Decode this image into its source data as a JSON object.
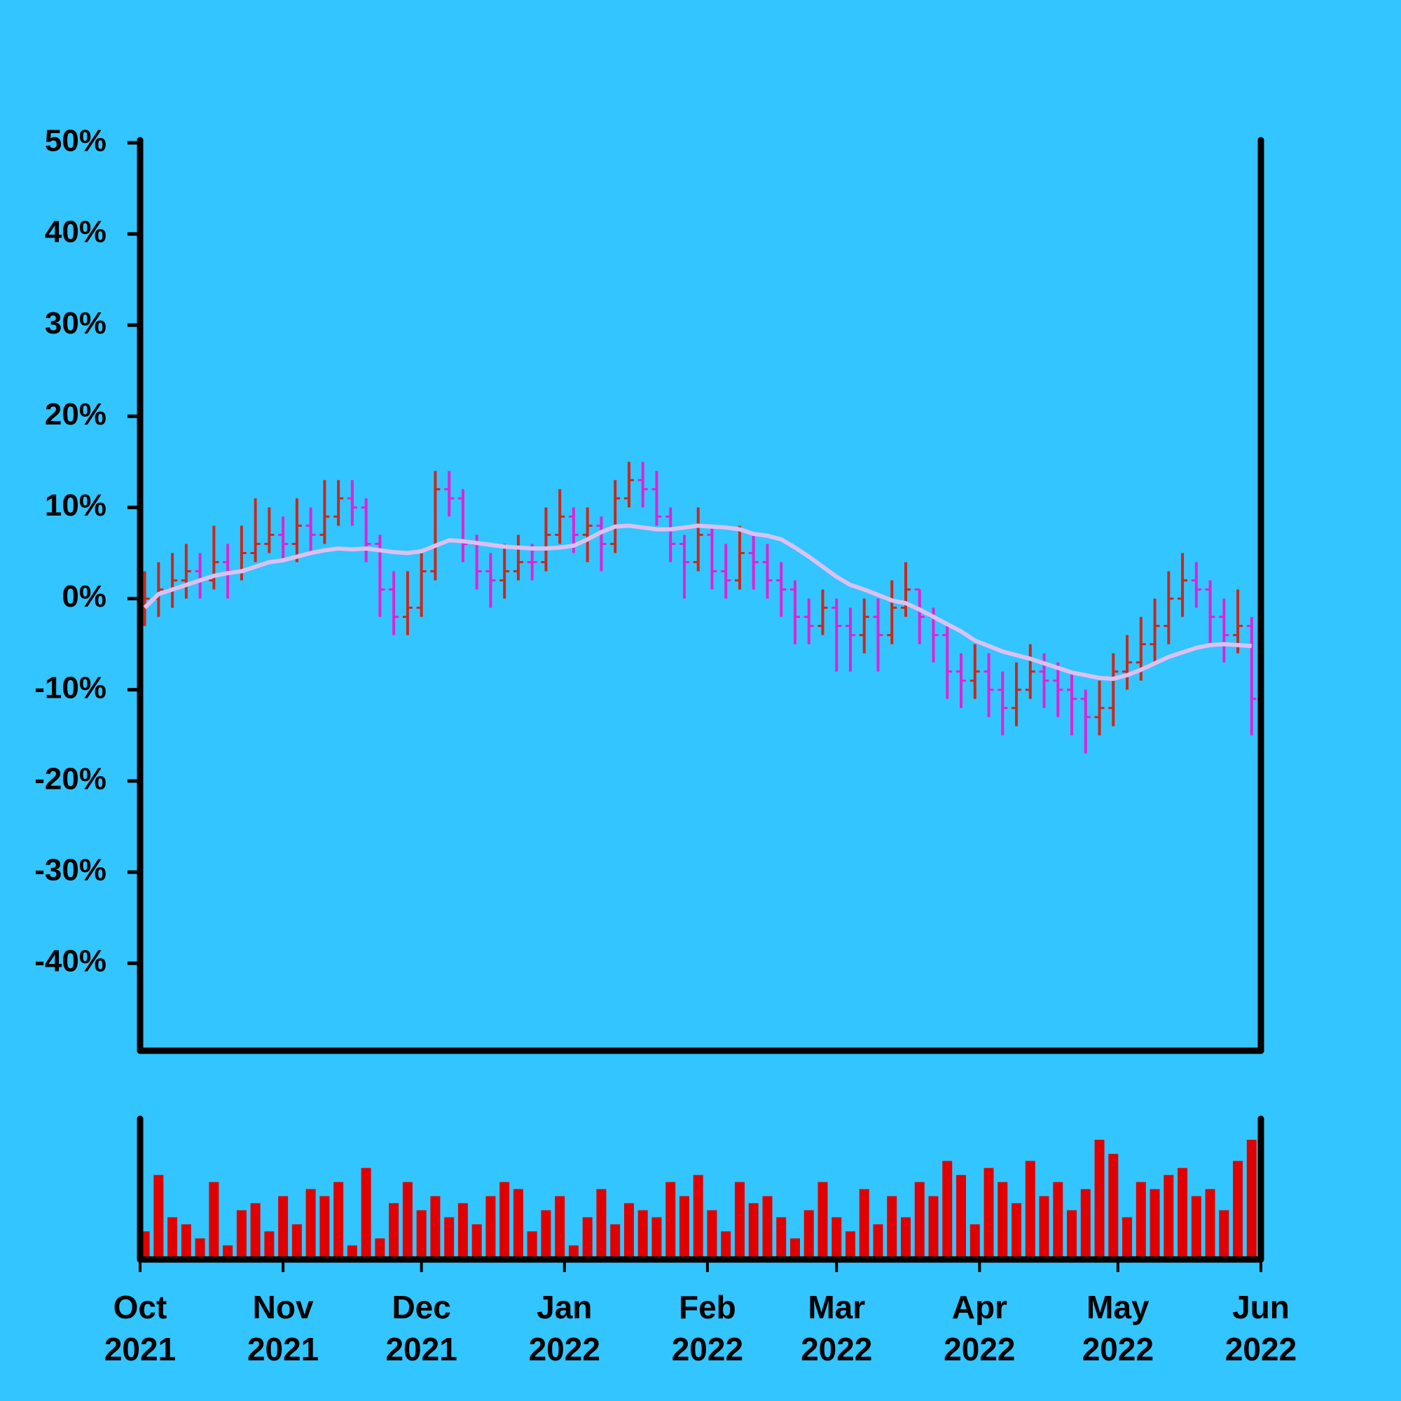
{
  "chart_data": {
    "type": "ohlc",
    "x": [
      1,
      4,
      7,
      10,
      13,
      16,
      19,
      22,
      25,
      28,
      31,
      34,
      37,
      40,
      43,
      46,
      49,
      52,
      55,
      58,
      61,
      64,
      67,
      70,
      73,
      76,
      79,
      82,
      85,
      88,
      91,
      94,
      97,
      100,
      103,
      106,
      109,
      112,
      115,
      118,
      121,
      124,
      127,
      130,
      133,
      136,
      139,
      142,
      145,
      148,
      151,
      154,
      157,
      160,
      163,
      166,
      169,
      172,
      175,
      178,
      181,
      184,
      187,
      190,
      193,
      196,
      199,
      202,
      205,
      208,
      211,
      214,
      217,
      220,
      223,
      226,
      229,
      232,
      235,
      238,
      241
    ],
    "open": [
      -1,
      0,
      1,
      2,
      3,
      2,
      4,
      3,
      5,
      6,
      7,
      6,
      8,
      7,
      9,
      11,
      10,
      6,
      1,
      -2,
      -1,
      3,
      12,
      11,
      6,
      3,
      2,
      3,
      4,
      4,
      7,
      9,
      7,
      8,
      6,
      11,
      13,
      12,
      9,
      6,
      4,
      7,
      3,
      2,
      5,
      4,
      2,
      1,
      -2,
      -3,
      -1,
      -3,
      -4,
      -2,
      -4,
      -1,
      1,
      -2,
      -4,
      -8,
      -9,
      -8,
      -10,
      -12,
      -10,
      -8,
      -9,
      -10,
      -11,
      -13,
      -12,
      -8,
      -7,
      -5,
      -3,
      0,
      2,
      1,
      -2,
      -4,
      -3
    ],
    "high": [
      3,
      4,
      5,
      6,
      5,
      8,
      6,
      8,
      11,
      10,
      9,
      11,
      10,
      13,
      13,
      13,
      11,
      7,
      3,
      3,
      5,
      14,
      14,
      12,
      7,
      5,
      6,
      7,
      6,
      10,
      12,
      10,
      10,
      9,
      13,
      15,
      15,
      14,
      10,
      7,
      10,
      8,
      6,
      8,
      7,
      6,
      4,
      2,
      0,
      1,
      0,
      -1,
      0,
      0,
      2,
      4,
      1,
      -1,
      -3,
      -6,
      -5,
      -6,
      -8,
      -7,
      -5,
      -6,
      -7,
      -8,
      -10,
      -9,
      -6,
      -4,
      -2,
      0,
      3,
      5,
      4,
      2,
      0,
      1,
      -2
    ],
    "low": [
      -3,
      -2,
      -1,
      0,
      0,
      1,
      0,
      2,
      4,
      5,
      4,
      4,
      5,
      6,
      8,
      8,
      4,
      -2,
      -4,
      -4,
      -2,
      2,
      9,
      4,
      1,
      -1,
      0,
      2,
      2,
      3,
      6,
      5,
      4,
      3,
      5,
      10,
      10,
      8,
      4,
      0,
      3,
      1,
      0,
      1,
      1,
      0,
      -2,
      -5,
      -5,
      -4,
      -8,
      -8,
      -6,
      -8,
      -5,
      -2,
      -5,
      -7,
      -11,
      -12,
      -11,
      -13,
      -15,
      -14,
      -11,
      -12,
      -13,
      -15,
      -17,
      -15,
      -14,
      -10,
      -9,
      -7,
      -5,
      -2,
      -1,
      -5,
      -7,
      -6,
      -15
    ],
    "close": [
      0,
      1,
      2,
      3,
      2,
      4,
      3,
      5,
      6,
      7,
      6,
      8,
      7,
      9,
      11,
      10,
      6,
      1,
      -2,
      -1,
      3,
      12,
      11,
      6,
      3,
      2,
      3,
      4,
      4,
      7,
      9,
      7,
      8,
      6,
      11,
      13,
      12,
      9,
      6,
      4,
      7,
      3,
      2,
      5,
      4,
      2,
      1,
      -2,
      -3,
      -1,
      -3,
      -4,
      -2,
      -4,
      -1,
      1,
      -2,
      -4,
      -8,
      -9,
      -8,
      -10,
      -12,
      -10,
      -8,
      -9,
      -10,
      -11,
      -13,
      -12,
      -8,
      -7,
      -5,
      -3,
      0,
      2,
      1,
      -2,
      -4,
      -3,
      -11
    ],
    "up_color": "#c9281c",
    "down_color": "#e022d6",
    "moving_average": {
      "color": "#dcc0f2",
      "values": [
        -1,
        0.5,
        1,
        1.5,
        2,
        2.5,
        2.8,
        3,
        3.5,
        4,
        4.2,
        4.6,
        5,
        5.3,
        5.5,
        5.4,
        5.5,
        5.3,
        5.1,
        5,
        5.2,
        5.8,
        6.4,
        6.3,
        6.1,
        5.9,
        5.7,
        5.6,
        5.5,
        5.5,
        5.6,
        5.8,
        6.5,
        7.3,
        7.9,
        8,
        7.8,
        7.6,
        7.6,
        7.8,
        8,
        7.9,
        7.8,
        7.6,
        7.1,
        6.9,
        6.5,
        5.6,
        4.6,
        3.5,
        2.4,
        1.5,
        1,
        0.4,
        -0.2,
        -0.5,
        -1.2,
        -2,
        -2.8,
        -3.6,
        -4.6,
        -5.2,
        -5.8,
        -6.2,
        -6.6,
        -7.1,
        -7.6,
        -8.1,
        -8.4,
        -8.7,
        -8.8,
        -8.4,
        -7.8,
        -7.1,
        -6.4,
        -5.9,
        -5.4,
        -5.1,
        -5,
        -5.1,
        -5.2
      ]
    },
    "volume": {
      "color": "#e00000",
      "ylim": [
        0,
        100
      ],
      "values": [
        20,
        60,
        30,
        25,
        15,
        55,
        10,
        35,
        40,
        20,
        45,
        25,
        50,
        45,
        55,
        10,
        65,
        15,
        40,
        55,
        35,
        45,
        30,
        40,
        25,
        45,
        55,
        50,
        20,
        35,
        45,
        10,
        30,
        50,
        25,
        40,
        35,
        30,
        55,
        45,
        60,
        35,
        20,
        55,
        40,
        45,
        30,
        15,
        35,
        55,
        30,
        20,
        50,
        25,
        45,
        30,
        55,
        45,
        70,
        60,
        25,
        65,
        55,
        40,
        70,
        45,
        55,
        35,
        50,
        85,
        75,
        30,
        55,
        50,
        60,
        65,
        45,
        50,
        35,
        70,
        85
      ]
    },
    "xlim": [
      0,
      243
    ],
    "xticks": [
      {
        "value": 0,
        "label": "Oct\n2021"
      },
      {
        "value": 31,
        "label": "Nov\n2021"
      },
      {
        "value": 61,
        "label": "Dec\n2021"
      },
      {
        "value": 92,
        "label": "Jan\n2022"
      },
      {
        "value": 123,
        "label": "Feb\n2022"
      },
      {
        "value": 151,
        "label": "Mar\n2022"
      },
      {
        "value": 182,
        "label": "Apr\n2022"
      },
      {
        "value": 212,
        "label": "May\n2022"
      },
      {
        "value": 243,
        "label": "Jun\n2022"
      }
    ],
    "ylim": [
      -49.6,
      50.3
    ],
    "yticks": [
      {
        "value": 50,
        "label": "50%"
      },
      {
        "value": 40,
        "label": "40%"
      },
      {
        "value": 30,
        "label": "30%"
      },
      {
        "value": 20,
        "label": "20%"
      },
      {
        "value": 10,
        "label": "10%"
      },
      {
        "value": 0,
        "label": "0%"
      },
      {
        "value": -10,
        "label": "-10%"
      },
      {
        "value": -20,
        "label": "-20%"
      },
      {
        "value": -30,
        "label": "-30%"
      },
      {
        "value": -40,
        "label": "-40%"
      }
    ]
  }
}
